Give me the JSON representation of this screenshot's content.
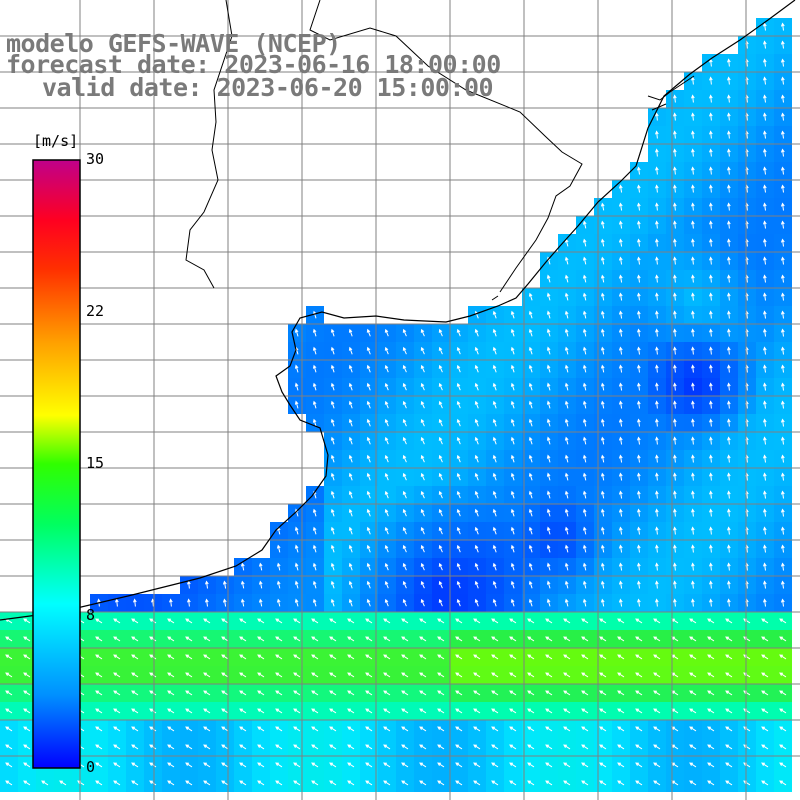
{
  "title": {
    "line1": "modelo GEFS-WAVE (NCEP)",
    "line2": "forecast date: 2023-06-16 18:00:00",
    "line3": "valid date: 2023-06-20 15:00:00"
  },
  "colorbar": {
    "unit": "[m/s]",
    "ticks": [
      {
        "value": 30,
        "label": "30"
      },
      {
        "value": 22,
        "label": "22"
      },
      {
        "value": 15,
        "label": "15"
      },
      {
        "value": 8,
        "label": "8"
      },
      {
        "value": 0,
        "label": "0"
      }
    ],
    "stops": [
      "#0000ff",
      "#00a0ff",
      "#00ffff",
      "#00ff40",
      "#40ff00",
      "#ffff00",
      "#ffa000",
      "#ff5000",
      "#ff0000",
      "#c80080"
    ]
  },
  "map": {
    "field_palette": {
      "low": "#1650f0",
      "mid": "#00c8ff",
      "high": "#2ee85a",
      "land": "#ffffff",
      "grid": "#808080",
      "coast": "#000000"
    }
  }
}
